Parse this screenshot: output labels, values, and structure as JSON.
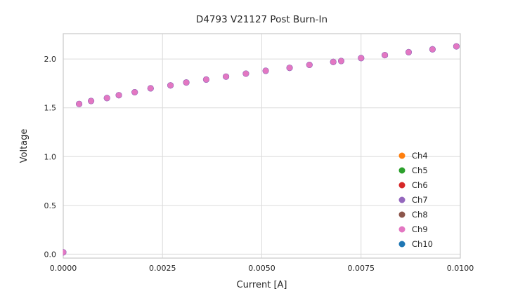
{
  "chart_data": {
    "type": "scatter",
    "title": "D4793 V21127 Post Burn-In",
    "xlabel": "Current [A]",
    "ylabel": "Voltage",
    "xlim": [
      0.0,
      0.01
    ],
    "ylim": [
      -0.04,
      2.26
    ],
    "grid": true,
    "legend_position": "lower right",
    "x_tick_values": [
      0.0,
      0.0025,
      0.005,
      0.0075,
      0.01
    ],
    "x_tick_labels": [
      "0.0000",
      "0.0025",
      "0.0050",
      "0.0075",
      "0.0100"
    ],
    "y_tick_values": [
      0.0,
      0.5,
      1.0,
      1.5,
      2.0
    ],
    "y_tick_labels": [
      "0.0",
      "0.5",
      "1.0",
      "1.5",
      "2.0"
    ],
    "series_overlap": true,
    "x": [
      0.0,
      0.0004,
      0.0007,
      0.0011,
      0.0014,
      0.0018,
      0.0022,
      0.0027,
      0.0031,
      0.0036,
      0.0041,
      0.0046,
      0.0051,
      0.0057,
      0.0062,
      0.0068,
      0.007,
      0.0075,
      0.0081,
      0.0087,
      0.0093,
      0.0099
    ],
    "y": [
      0.02,
      1.54,
      1.57,
      1.6,
      1.63,
      1.66,
      1.7,
      1.73,
      1.76,
      1.79,
      1.82,
      1.85,
      1.88,
      1.91,
      1.94,
      1.97,
      1.98,
      2.01,
      2.04,
      2.07,
      2.1,
      2.13
    ],
    "series": [
      {
        "name": "Ch4",
        "color": "#ff7f0e"
      },
      {
        "name": "Ch5",
        "color": "#2ca02c"
      },
      {
        "name": "Ch6",
        "color": "#d62728"
      },
      {
        "name": "Ch7",
        "color": "#9467bd"
      },
      {
        "name": "Ch8",
        "color": "#8c564b"
      },
      {
        "name": "Ch9",
        "color": "#e377c2"
      },
      {
        "name": "Ch10",
        "color": "#1f77b4"
      }
    ],
    "visible_marker_color": "#e377c2",
    "marker_edge_color": "#9467bd",
    "grid_color": "#dcdcdc",
    "border_color": "#c9c9c9"
  }
}
